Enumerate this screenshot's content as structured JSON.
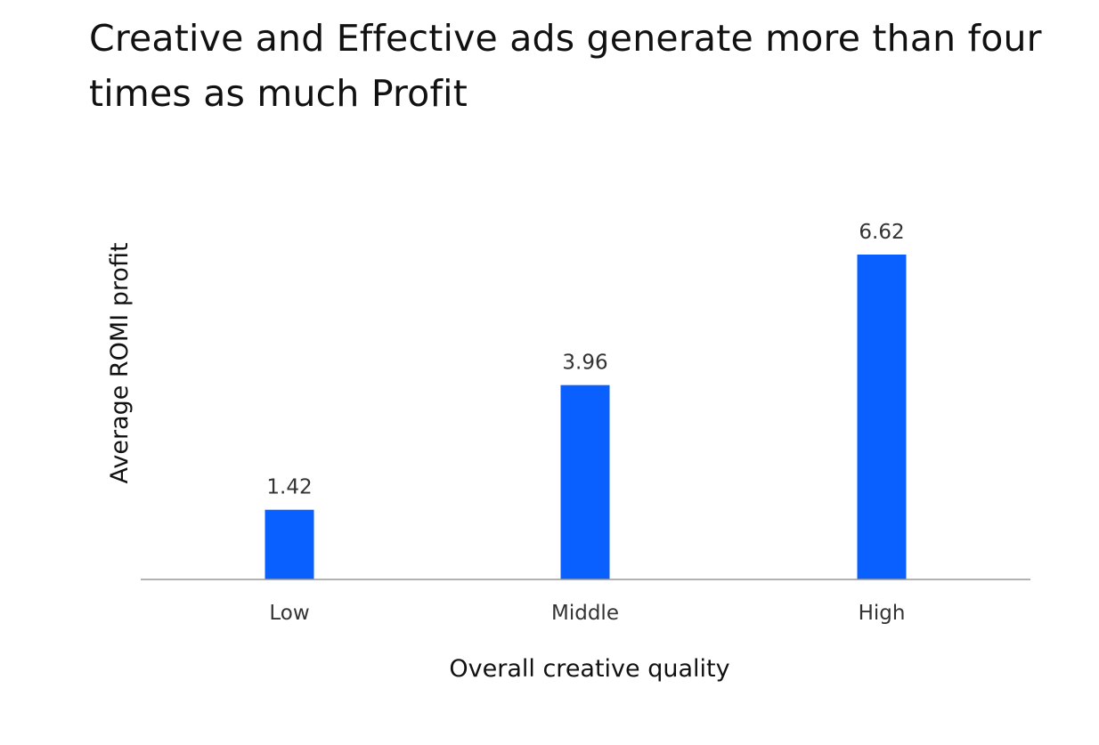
{
  "title": "Creative and Effective ads generate more than four times as much Profit",
  "chart_data": {
    "type": "bar",
    "categories": [
      "Low",
      "Middle",
      "High"
    ],
    "values": [
      1.42,
      3.96,
      6.62
    ],
    "data_labels": [
      "1.42",
      "3.96",
      "6.62"
    ],
    "xlabel": "Overall creative quality",
    "ylabel": "Average ROMI profit",
    "ylim": [
      0,
      6.62
    ],
    "grid": false,
    "legend": "none",
    "bar_color": "#0A60FF",
    "axis_color": "#999999"
  }
}
